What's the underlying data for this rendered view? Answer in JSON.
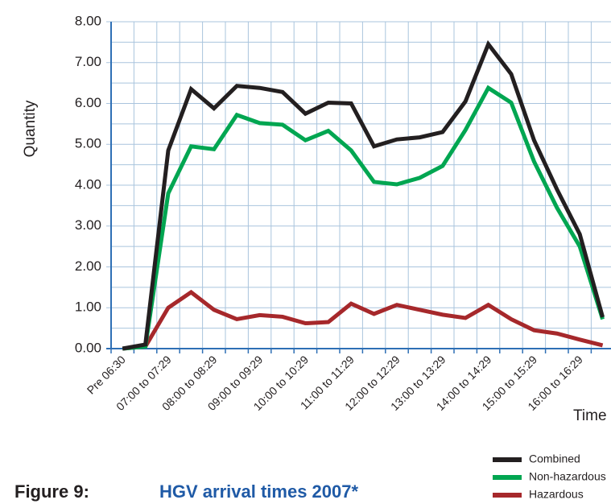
{
  "chart_data": {
    "type": "line",
    "categories": [
      "Pre 06:30",
      null,
      "07:00 to 07:29",
      null,
      "08:00 to 08:29",
      null,
      "09:00 to 09:29",
      null,
      "10:00 to 10:29",
      null,
      "11:00 to 11:29",
      null,
      "12:00 to 12:29",
      null,
      "13:00 to 13:29",
      null,
      "14:00 to 14:29",
      null,
      "15:00 to 15:29",
      null,
      "16:00 to 16:29",
      null
    ],
    "series": [
      {
        "name": "Combined",
        "color": "#231f20",
        "values": [
          0.0,
          0.1,
          4.85,
          6.35,
          5.88,
          6.43,
          6.38,
          6.28,
          5.75,
          6.02,
          6.0,
          4.95,
          5.12,
          5.17,
          5.3,
          6.05,
          7.45,
          6.72,
          5.1,
          3.9,
          2.8,
          0.77
        ]
      },
      {
        "name": "Non-hazardous",
        "color": "#00a651",
        "values": [
          0.0,
          0.05,
          3.8,
          4.95,
          4.88,
          5.72,
          5.52,
          5.48,
          5.1,
          5.33,
          4.85,
          4.08,
          4.02,
          4.18,
          4.47,
          5.35,
          6.38,
          6.02,
          4.58,
          3.45,
          2.5,
          0.72
        ]
      },
      {
        "name": "Hazardous",
        "color": "#a6282b",
        "values": [
          0.0,
          0.05,
          1.0,
          1.38,
          0.95,
          0.72,
          0.82,
          0.78,
          0.62,
          0.65,
          1.1,
          0.85,
          1.07,
          0.95,
          0.83,
          0.75,
          1.07,
          0.72,
          0.45,
          0.37,
          0.22,
          0.08
        ]
      }
    ],
    "ylim": [
      0,
      8
    ],
    "yticks": [
      {
        "value": 0,
        "label": "0.00"
      },
      {
        "value": 1,
        "label": "1.00"
      },
      {
        "value": 2,
        "label": "2.00"
      },
      {
        "value": 3,
        "label": "3.00"
      },
      {
        "value": 4,
        "label": "4.00"
      },
      {
        "value": 5,
        "label": "5.00"
      },
      {
        "value": 6,
        "label": "6.00"
      },
      {
        "value": 7,
        "label": "7.00"
      },
      {
        "value": 8,
        "label": "8.00"
      }
    ],
    "y_label": "Quantity",
    "x_label": "Time",
    "grid": true,
    "legend": "lower right",
    "figure_label": "Figure 9:",
    "title": "HGV arrival times 2007*"
  }
}
